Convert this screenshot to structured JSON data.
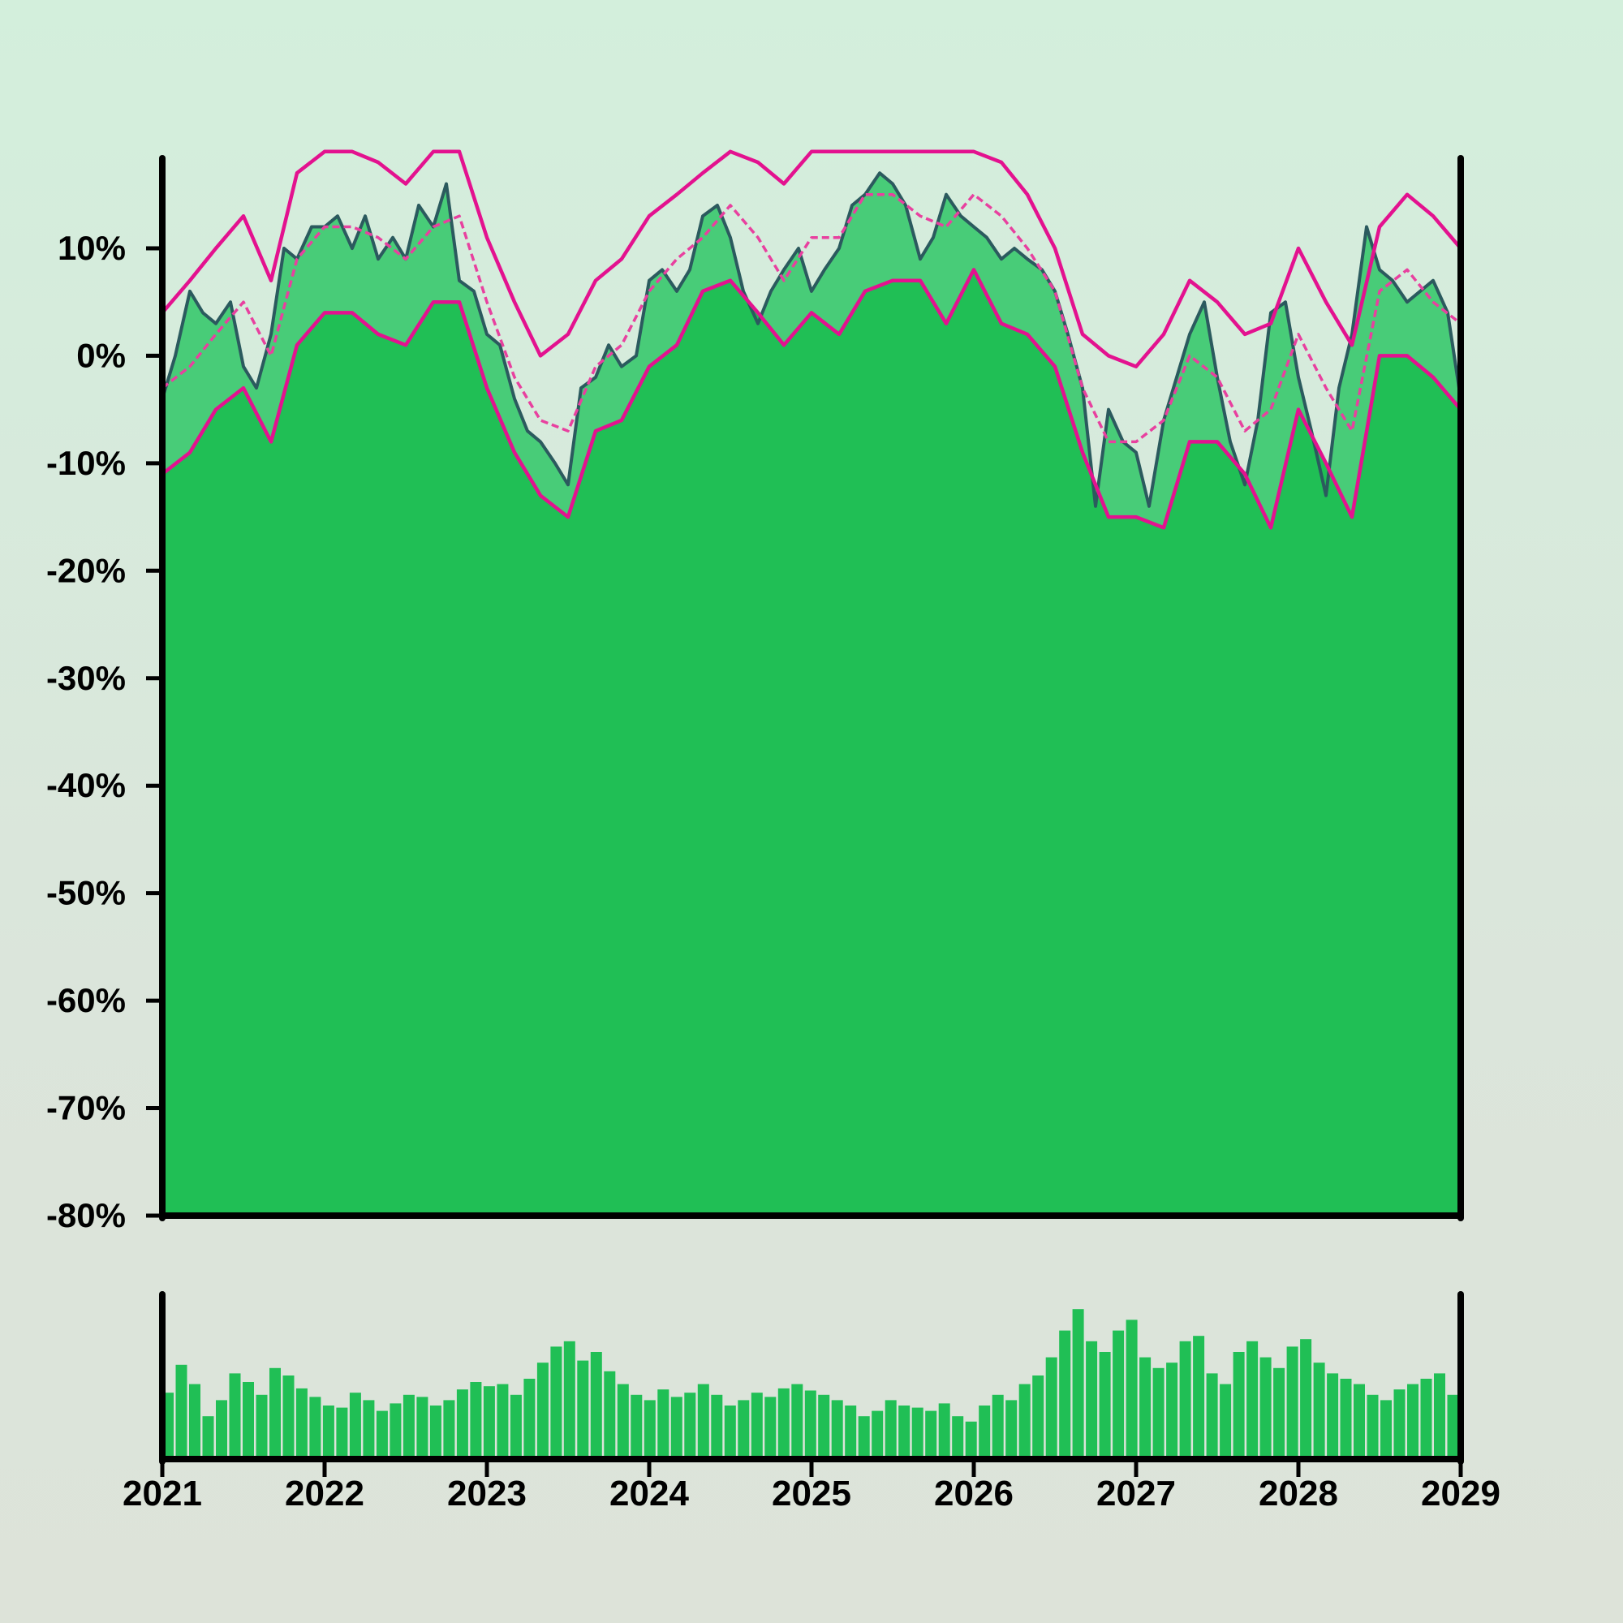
{
  "chart_data": {
    "type": "area",
    "colors": {
      "background_top": "#d3efdc",
      "background_bottom": "#dde3d9",
      "area_fill": "#20bf55",
      "band_fill": "#48cc78",
      "price_line": "#2b5a5e",
      "envelope": "#e3128f",
      "envelope_mid": "#e8409f",
      "volume_bars": "#20bf55",
      "axis": "#000000"
    },
    "main_panel": {
      "ylim": [
        -80,
        18
      ],
      "yticks": [
        10,
        0,
        -10,
        -20,
        -30,
        -40,
        -50,
        -60,
        -70,
        -80
      ],
      "ytick_labels": [
        "10%",
        "0%",
        "-10%",
        "-20%",
        "-30%",
        "-40%",
        "-50%",
        "-60%",
        "-70%",
        "-80%"
      ],
      "price_series": {
        "x": [
          2021.0,
          2021.08,
          2021.17,
          2021.25,
          2021.33,
          2021.42,
          2021.5,
          2021.58,
          2021.67,
          2021.75,
          2021.83,
          2021.92,
          2022.0,
          2022.08,
          2022.17,
          2022.25,
          2022.33,
          2022.42,
          2022.5,
          2022.58,
          2022.67,
          2022.75,
          2022.83,
          2022.92,
          2023.0,
          2023.08,
          2023.17,
          2023.25,
          2023.33,
          2023.42,
          2023.5,
          2023.58,
          2023.67,
          2023.75,
          2023.83,
          2023.92,
          2024.0,
          2024.08,
          2024.17,
          2024.25,
          2024.33,
          2024.42,
          2024.5,
          2024.58,
          2024.67,
          2024.75,
          2024.83,
          2024.92,
          2025.0,
          2025.08,
          2025.17,
          2025.25,
          2025.33,
          2025.42,
          2025.5,
          2025.58,
          2025.67,
          2025.75,
          2025.83,
          2025.92,
          2026.0,
          2026.08,
          2026.17,
          2026.25,
          2026.33,
          2026.42,
          2026.5,
          2026.58,
          2026.67,
          2026.75,
          2026.83,
          2026.92,
          2027.0,
          2027.08,
          2027.17,
          2027.25,
          2027.33,
          2027.42,
          2027.5,
          2027.58,
          2027.67,
          2027.75,
          2027.83,
          2027.92,
          2028.0,
          2028.08,
          2028.17,
          2028.25,
          2028.33,
          2028.42,
          2028.5,
          2028.58,
          2028.67,
          2028.75,
          2028.83,
          2028.92,
          2029.0
        ],
        "y": [
          -4,
          0,
          6,
          4,
          3,
          5,
          -1,
          -3,
          2,
          10,
          9,
          12,
          12,
          13,
          10,
          13,
          9,
          11,
          9,
          14,
          12,
          16,
          7,
          6,
          2,
          1,
          -4,
          -7,
          -8,
          -10,
          -12,
          -3,
          -2,
          1,
          -1,
          0,
          7,
          8,
          6,
          8,
          13,
          14,
          11,
          6,
          3,
          6,
          8,
          10,
          6,
          8,
          10,
          14,
          15,
          17,
          16,
          14,
          9,
          11,
          15,
          13,
          12,
          11,
          9,
          10,
          9,
          8,
          6,
          2,
          -3,
          -14,
          -5,
          -8,
          -9,
          -14,
          -6,
          -2,
          2,
          5,
          -2,
          -8,
          -12,
          -6,
          4,
          5,
          -2,
          -7,
          -13,
          -3,
          2,
          12,
          8,
          7,
          5,
          6,
          7,
          4,
          -4
        ]
      },
      "envelope_upper": {
        "x": [
          2021.0,
          2021.17,
          2021.33,
          2021.5,
          2021.67,
          2021.83,
          2022.0,
          2022.17,
          2022.33,
          2022.5,
          2022.67,
          2022.83,
          2023.0,
          2023.17,
          2023.33,
          2023.5,
          2023.67,
          2023.83,
          2024.0,
          2024.17,
          2024.33,
          2024.5,
          2024.67,
          2024.83,
          2025.0,
          2025.17,
          2025.33,
          2025.5,
          2025.67,
          2025.83,
          2026.0,
          2026.17,
          2026.33,
          2026.5,
          2026.67,
          2026.83,
          2027.0,
          2027.17,
          2027.33,
          2027.5,
          2027.67,
          2027.83,
          2028.0,
          2028.17,
          2028.33,
          2028.5,
          2028.67,
          2028.83,
          2029.0
        ],
        "y": [
          4,
          7,
          10,
          13,
          7,
          17,
          19,
          19,
          18,
          16,
          19,
          19,
          11,
          5,
          0,
          2,
          7,
          9,
          13,
          15,
          17,
          19,
          18,
          16,
          19,
          19,
          19,
          19,
          19,
          19,
          19,
          18,
          15,
          10,
          2,
          0,
          -1,
          2,
          7,
          5,
          2,
          3,
          10,
          5,
          1,
          12,
          15,
          13,
          10
        ]
      },
      "envelope_mid": {
        "x": [
          2021.0,
          2021.17,
          2021.33,
          2021.5,
          2021.67,
          2021.83,
          2022.0,
          2022.17,
          2022.33,
          2022.5,
          2022.67,
          2022.83,
          2023.0,
          2023.17,
          2023.33,
          2023.5,
          2023.67,
          2023.83,
          2024.0,
          2024.17,
          2024.33,
          2024.5,
          2024.67,
          2024.83,
          2025.0,
          2025.17,
          2025.33,
          2025.5,
          2025.67,
          2025.83,
          2026.0,
          2026.17,
          2026.33,
          2026.5,
          2026.67,
          2026.83,
          2027.0,
          2027.17,
          2027.33,
          2027.5,
          2027.67,
          2027.83,
          2028.0,
          2028.17,
          2028.33,
          2028.5,
          2028.67,
          2028.83,
          2029.0
        ],
        "y": [
          -3,
          -1,
          2,
          5,
          0,
          9,
          12,
          12,
          11,
          9,
          12,
          13,
          5,
          -2,
          -6,
          -7,
          -1,
          1,
          6,
          9,
          11,
          14,
          11,
          7,
          11,
          11,
          15,
          15,
          13,
          12,
          15,
          13,
          10,
          6,
          -3,
          -8,
          -8,
          -6,
          0,
          -2,
          -7,
          -5,
          2,
          -3,
          -7,
          6,
          8,
          5,
          3
        ]
      },
      "envelope_lower": {
        "x": [
          2021.0,
          2021.17,
          2021.33,
          2021.5,
          2021.67,
          2021.83,
          2022.0,
          2022.17,
          2022.33,
          2022.5,
          2022.67,
          2022.83,
          2023.0,
          2023.17,
          2023.33,
          2023.5,
          2023.67,
          2023.83,
          2024.0,
          2024.17,
          2024.33,
          2024.5,
          2024.67,
          2024.83,
          2025.0,
          2025.17,
          2025.33,
          2025.5,
          2025.67,
          2025.83,
          2026.0,
          2026.17,
          2026.33,
          2026.5,
          2026.67,
          2026.83,
          2027.0,
          2027.17,
          2027.33,
          2027.5,
          2027.67,
          2027.83,
          2028.0,
          2028.17,
          2028.33,
          2028.5,
          2028.67,
          2028.83,
          2029.0
        ],
        "y": [
          -11,
          -9,
          -5,
          -3,
          -8,
          1,
          4,
          4,
          2,
          1,
          5,
          5,
          -3,
          -9,
          -13,
          -15,
          -7,
          -6,
          -1,
          1,
          6,
          7,
          4,
          1,
          4,
          2,
          6,
          7,
          7,
          3,
          8,
          3,
          2,
          -1,
          -9,
          -15,
          -15,
          -16,
          -8,
          -8,
          -11,
          -16,
          -5,
          -10,
          -15,
          0,
          0,
          -2,
          -5
        ]
      }
    },
    "volume_panel": {
      "series": [
        62,
        88,
        70,
        40,
        55,
        80,
        72,
        60,
        85,
        78,
        66,
        58,
        50,
        48,
        62,
        55,
        45,
        52,
        60,
        58,
        50,
        55,
        65,
        72,
        68,
        70,
        60,
        75,
        90,
        105,
        110,
        92,
        100,
        82,
        70,
        60,
        55,
        65,
        58,
        62,
        70,
        60,
        50,
        55,
        62,
        58,
        66,
        70,
        64,
        60,
        55,
        50,
        40,
        45,
        55,
        50,
        48,
        45,
        52,
        40,
        35,
        50,
        60,
        55,
        70,
        78,
        95,
        120,
        140,
        110,
        100,
        120,
        130,
        95,
        85,
        90,
        110,
        115,
        80,
        70,
        100,
        110,
        95,
        85,
        105,
        112,
        90,
        80,
        75,
        70,
        60,
        55,
        65,
        70,
        75,
        80,
        60
      ]
    },
    "xticks": [
      2021,
      2022,
      2023,
      2024,
      2025,
      2026,
      2027,
      2028,
      2029
    ],
    "xtick_labels": [
      "2021",
      "2022",
      "2023",
      "2024",
      "2025",
      "2026",
      "2027",
      "2028",
      "2029"
    ],
    "xlim": [
      2021,
      2029
    ],
    "grid": false,
    "legend": "none"
  }
}
